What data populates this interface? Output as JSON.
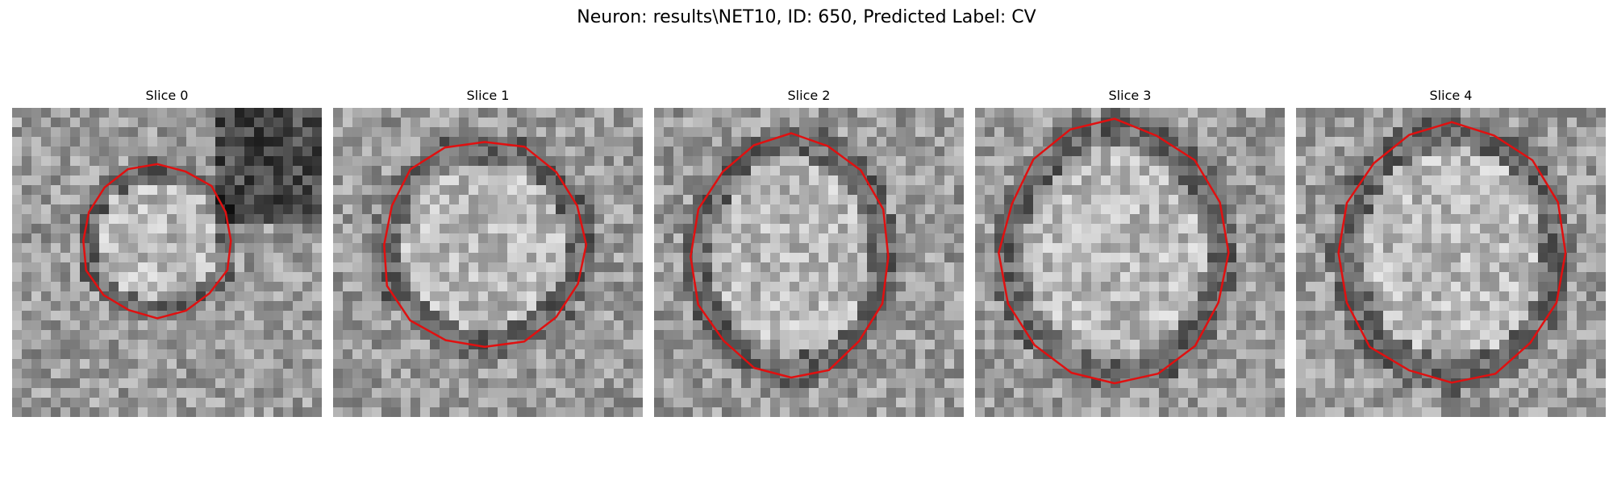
{
  "figure_title": "Neuron: results\\NET10, ID: 650, Predicted Label: CV",
  "panels": [
    {
      "label": "Slice 0"
    },
    {
      "label": "Slice 1"
    },
    {
      "label": "Slice 2"
    },
    {
      "label": "Slice 3"
    },
    {
      "label": "Slice 4"
    }
  ],
  "contour_color": "#e01010"
}
